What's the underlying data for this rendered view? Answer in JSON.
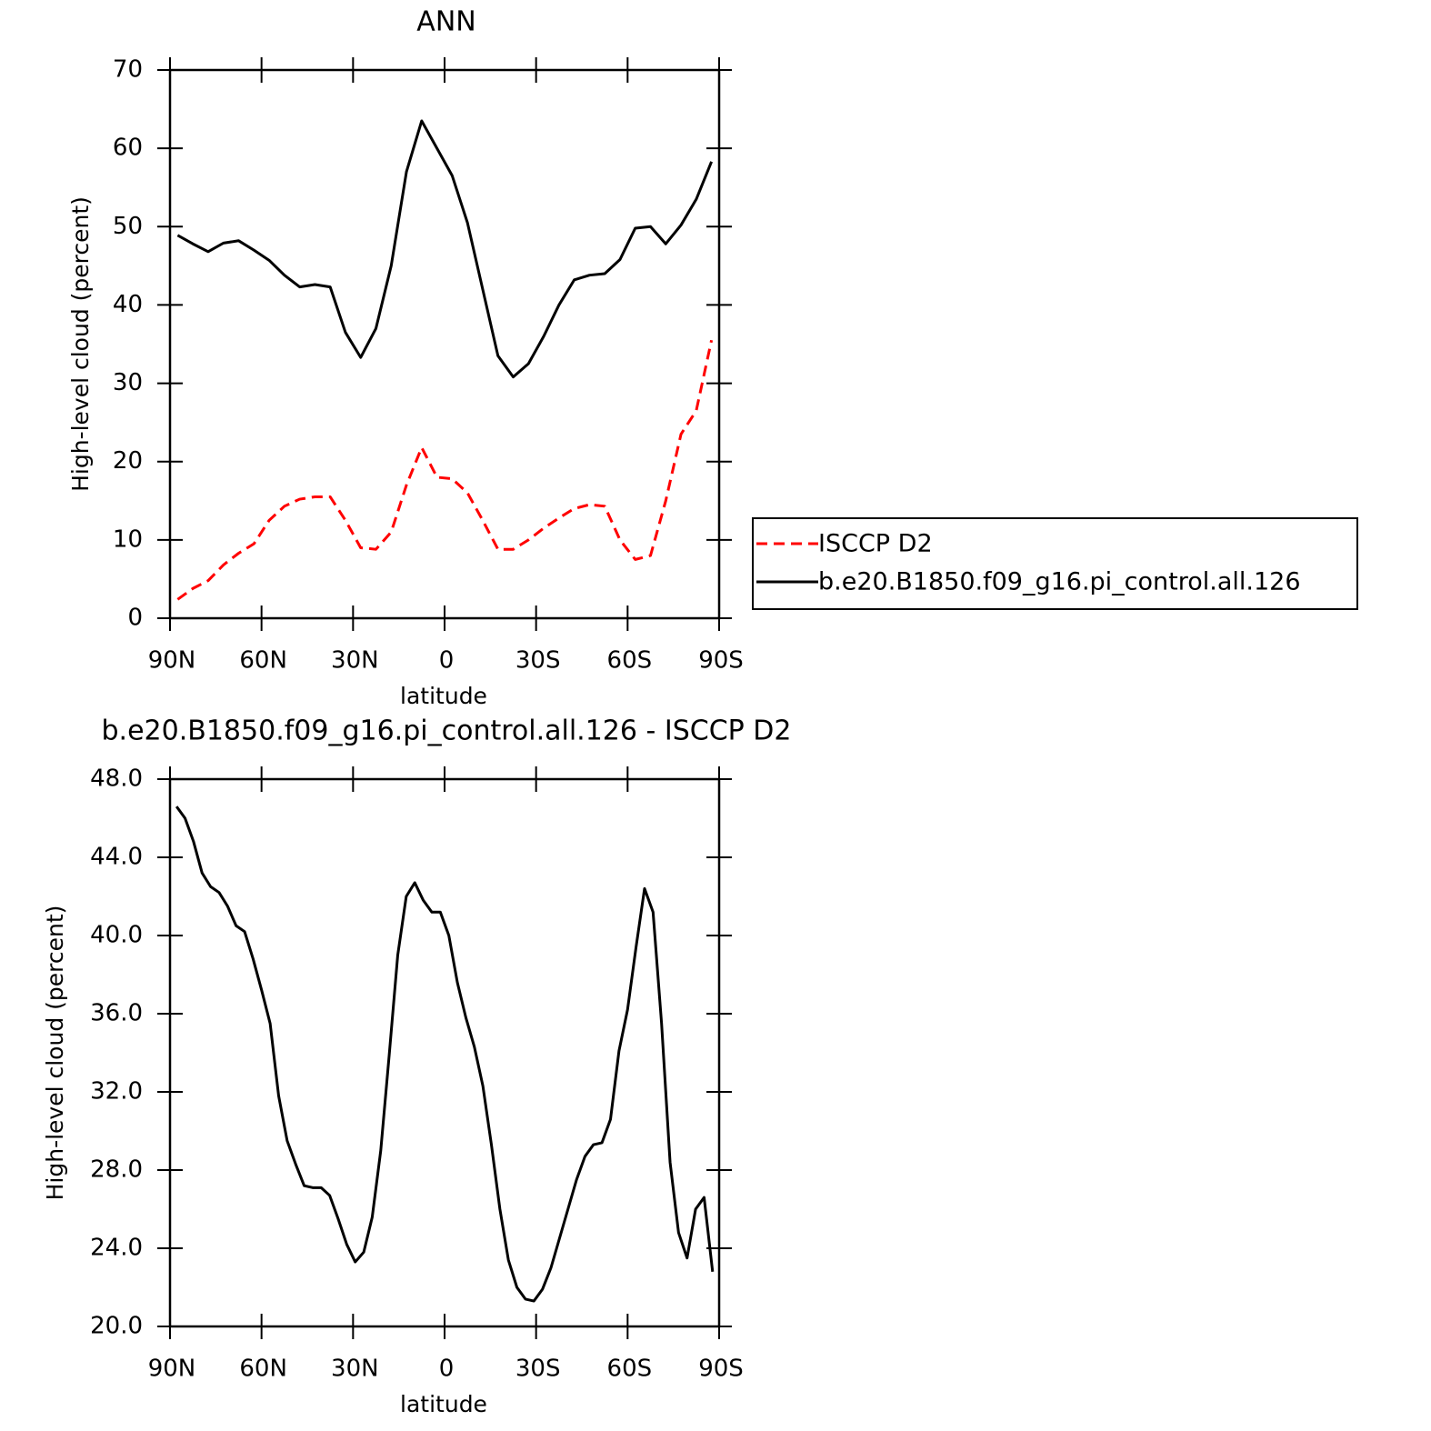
{
  "chart_data": [
    {
      "type": "line",
      "title": "ANN",
      "xlabel": "latitude",
      "ylabel": "High-level cloud (percent)",
      "x": [
        87.5,
        82.5,
        77.5,
        72.5,
        67.5,
        62.5,
        57.5,
        52.5,
        47.5,
        42.5,
        37.5,
        32.5,
        27.5,
        22.5,
        17.5,
        12.5,
        7.5,
        2.5,
        -2.5,
        -7.5,
        -12.5,
        -17.5,
        -22.5,
        -27.5,
        -32.5,
        -37.5,
        -42.5,
        -47.5,
        -52.5,
        -57.5,
        -62.5,
        -67.5,
        -72.5,
        -77.5,
        -82.5,
        -87.5
      ],
      "series": [
        {
          "name": "ISCCP D2",
          "color": "#ff0000",
          "dash": true,
          "values": [
            2.4,
            3.8,
            4.8,
            6.8,
            8.3,
            9.5,
            12.5,
            14.3,
            15.2,
            15.5,
            15.5,
            12.5,
            9,
            8.8,
            11,
            17,
            21.8,
            18,
            17.8,
            16,
            12.5,
            8.8,
            8.8,
            10,
            11.5,
            12.8,
            14,
            14.5,
            14.3,
            10,
            7.5,
            8,
            15,
            23.5,
            26.5,
            35.5
          ]
        },
        {
          "name": "b.e20.B1850.f09_g16.pi_control.all.126",
          "color": "#000000",
          "values": [
            48.9,
            47.8,
            46.8,
            47.9,
            48.2,
            47,
            45.7,
            43.8,
            42.3,
            42.6,
            42.3,
            36.5,
            33.3,
            37,
            45,
            57,
            63.5,
            60,
            56.5,
            50.5,
            42,
            33.5,
            30.8,
            32.5,
            36,
            40,
            43.2,
            43.8,
            44,
            45.8,
            49.8,
            50,
            47.8,
            50.2,
            53.5,
            58.3
          ]
        }
      ],
      "xlim": [
        90,
        -90
      ],
      "xticks": [
        {
          "value": 90,
          "label": "90N"
        },
        {
          "value": 60,
          "label": "60N"
        },
        {
          "value": 30,
          "label": "30N"
        },
        0,
        {
          "value": -30,
          "label": "30S"
        },
        {
          "value": -60,
          "label": "60S"
        },
        {
          "value": -90,
          "label": "90S"
        }
      ],
      "ylim": [
        0,
        70
      ],
      "yticks": [
        0,
        10,
        20,
        30,
        40,
        50,
        60,
        70
      ],
      "legend": "right"
    },
    {
      "type": "line",
      "title": "b.e20.B1850.f09_g16.pi_control.all.126 - ISCCP D2",
      "xlabel": "latitude",
      "ylabel": "High-level cloud (percent)",
      "x": [
        87.86,
        85.07,
        82.28,
        79.49,
        76.7,
        73.92,
        71.13,
        68.34,
        65.55,
        62.76,
        59.97,
        57.18,
        54.39,
        51.6,
        48.81,
        46.02,
        43.24,
        40.45,
        37.66,
        34.87,
        32.08,
        29.29,
        26.5,
        23.71,
        20.92,
        18.14,
        15.35,
        12.56,
        9.77,
        6.98,
        4.19,
        1.4,
        -1.4,
        -4.19,
        -6.98,
        -9.77,
        -12.56,
        -15.35,
        -18.14,
        -20.92,
        -23.71,
        -26.5,
        -29.29,
        -32.08,
        -34.87,
        -37.66,
        -40.45,
        -43.24,
        -46.02,
        -48.81,
        -51.6,
        -54.39,
        -57.18,
        -59.97,
        -62.76,
        -65.55,
        -68.34,
        -71.13,
        -73.92,
        -76.7,
        -79.49,
        -82.28,
        -85.07,
        -87.86
      ],
      "values": [
        46.6,
        46.0,
        44.8,
        43.2,
        42.5,
        42.2,
        41.5,
        40.5,
        40.2,
        38.8,
        37.2,
        35.5,
        31.8,
        29.5,
        28.3,
        27.2,
        27.1,
        27.1,
        26.7,
        25.5,
        24.2,
        23.3,
        23.8,
        25.6,
        29.0,
        33.9,
        39.0,
        42.0,
        42.7,
        41.8,
        41.2,
        41.2,
        40.0,
        37.6,
        35.8,
        34.3,
        32.3,
        29.3,
        26.0,
        23.4,
        22.0,
        21.4,
        21.3,
        21.9,
        23.0,
        24.5,
        26.0,
        27.5,
        28.7,
        29.3,
        29.4,
        30.6,
        34.1,
        36.2,
        39.4,
        42.4,
        41.2,
        35.5,
        28.4,
        24.8,
        23.5,
        26.0,
        26.6,
        22.8
      ],
      "color": "#000000",
      "xlim": [
        90,
        -90
      ],
      "xticks": [
        {
          "value": 90,
          "label": "90N"
        },
        {
          "value": 60,
          "label": "60N"
        },
        {
          "value": 30,
          "label": "30N"
        },
        0,
        {
          "value": -30,
          "label": "30S"
        },
        {
          "value": -60,
          "label": "60S"
        },
        {
          "value": -90,
          "label": "90S"
        }
      ],
      "ylim": [
        20,
        48
      ],
      "yticks": [
        {
          "value": 20,
          "label": "20.0"
        },
        {
          "value": 24,
          "label": "24.0"
        },
        {
          "value": 28,
          "label": "28.0"
        },
        {
          "value": 32,
          "label": "32.0"
        },
        {
          "value": 36,
          "label": "36.0"
        },
        {
          "value": 40,
          "label": "40.0"
        },
        {
          "value": 44,
          "label": "44.0"
        },
        {
          "value": 48,
          "label": "48.0"
        }
      ]
    }
  ]
}
